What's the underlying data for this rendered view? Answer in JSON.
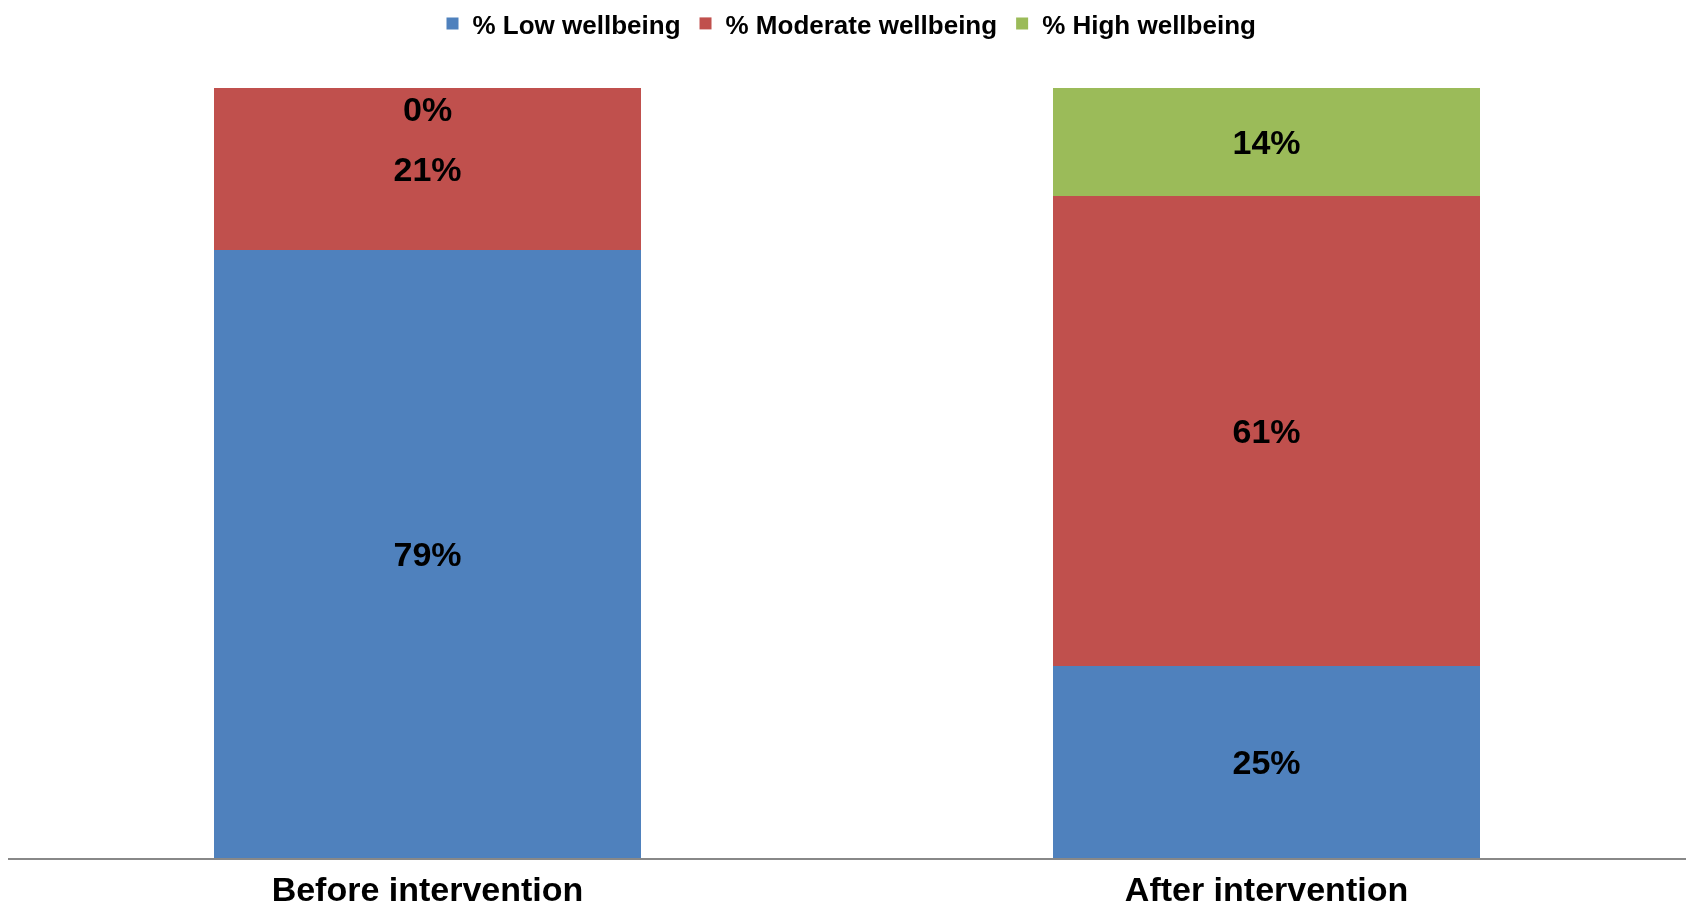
{
  "chart_data": {
    "type": "bar",
    "stacked": true,
    "categories": [
      "Before intervention",
      "After intervention"
    ],
    "series": [
      {
        "name": "% Low wellbeing",
        "color": "#4f81bd",
        "values": [
          79,
          25
        ],
        "value_labels": [
          "79%",
          "25%"
        ]
      },
      {
        "name": "% Moderate wellbeing",
        "color": "#c0504d",
        "values": [
          21,
          61
        ],
        "value_labels": [
          "21%",
          "61%"
        ]
      },
      {
        "name": "% High wellbeing",
        "color": "#9bbb59",
        "values": [
          0,
          14
        ],
        "value_labels": [
          "0%",
          "14%"
        ]
      }
    ],
    "legend": "top"
  }
}
